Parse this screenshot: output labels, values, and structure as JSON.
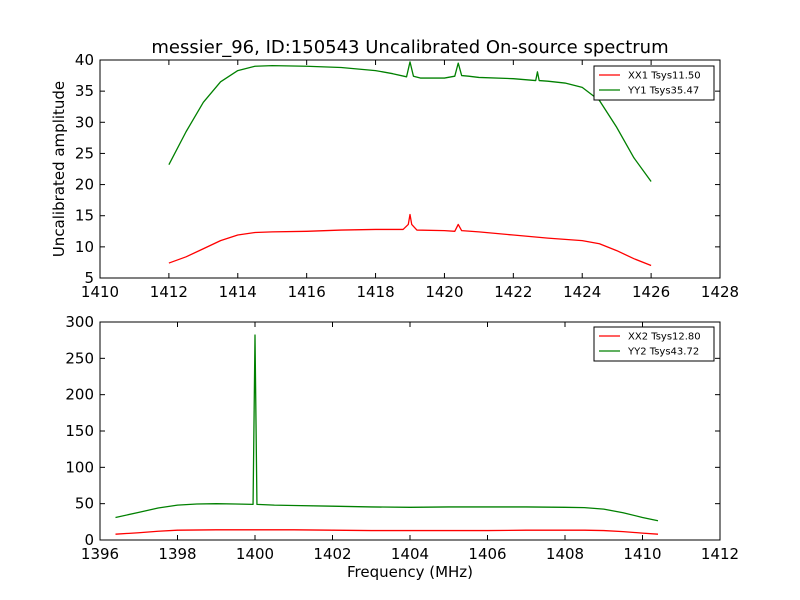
{
  "figure": {
    "title": "messier_96, ID:150543 Uncalibrated On-source spectrum"
  },
  "colors": {
    "xx": "#ff0000",
    "yy": "#008000",
    "frame": "#000000",
    "background": "#ffffff"
  },
  "chart_data": [
    {
      "type": "line",
      "title": "messier_96, ID:150543 Uncalibrated On-source spectrum",
      "xlabel": "",
      "ylabel": "Uncalibrated amplitude",
      "xlim": [
        1410,
        1428
      ],
      "ylim": [
        5,
        40
      ],
      "xticks": [
        1410,
        1412,
        1414,
        1416,
        1418,
        1420,
        1422,
        1424,
        1426,
        1428
      ],
      "yticks": [
        5,
        10,
        15,
        20,
        25,
        30,
        35,
        40
      ],
      "grid": false,
      "legend": "top-right",
      "series": [
        {
          "name": "XX1 Tsys11.50",
          "color": "#ff0000",
          "x": [
            1412.0,
            1412.5,
            1413.0,
            1413.5,
            1414.0,
            1414.5,
            1415.0,
            1416.0,
            1417.0,
            1418.0,
            1418.8,
            1418.95,
            1419.0,
            1419.05,
            1419.2,
            1420.0,
            1420.3,
            1420.4,
            1420.5,
            1421.0,
            1422.0,
            1423.0,
            1424.0,
            1424.5,
            1425.0,
            1425.5,
            1426.0
          ],
          "y": [
            7.4,
            8.4,
            9.7,
            11.0,
            11.9,
            12.3,
            12.4,
            12.5,
            12.7,
            12.8,
            12.8,
            13.6,
            15.2,
            13.6,
            12.7,
            12.6,
            12.5,
            13.6,
            12.6,
            12.4,
            11.9,
            11.4,
            11.0,
            10.5,
            9.4,
            8.1,
            7.0
          ]
        },
        {
          "name": "YY1 Tsys35.47",
          "color": "#008000",
          "x": [
            1412.0,
            1412.5,
            1413.0,
            1413.5,
            1414.0,
            1414.5,
            1415.0,
            1416.0,
            1417.0,
            1418.0,
            1418.5,
            1418.9,
            1419.0,
            1419.1,
            1419.3,
            1420.0,
            1420.3,
            1420.4,
            1420.5,
            1420.7,
            1421.0,
            1422.0,
            1422.65,
            1422.7,
            1422.75,
            1423.0,
            1423.5,
            1424.0,
            1424.5,
            1425.0,
            1425.5,
            1426.0
          ],
          "y": [
            23.2,
            28.5,
            33.2,
            36.5,
            38.3,
            39.0,
            39.1,
            39.0,
            38.8,
            38.3,
            37.8,
            37.3,
            39.7,
            37.4,
            37.1,
            37.1,
            37.4,
            39.5,
            37.5,
            37.4,
            37.2,
            37.0,
            36.7,
            38.1,
            36.7,
            36.6,
            36.3,
            35.6,
            33.5,
            29.2,
            24.3,
            20.5
          ]
        }
      ]
    },
    {
      "type": "line",
      "title": "",
      "xlabel": "Frequency (MHz)",
      "ylabel": "",
      "xlim": [
        1396,
        1412
      ],
      "ylim": [
        0,
        300
      ],
      "xticks": [
        1396,
        1398,
        1400,
        1402,
        1404,
        1406,
        1408,
        1410,
        1412
      ],
      "yticks": [
        0,
        50,
        100,
        150,
        200,
        250,
        300
      ],
      "grid": false,
      "legend": "top-right",
      "series": [
        {
          "name": "XX2 Tsys12.80",
          "color": "#ff0000",
          "x": [
            1396.4,
            1397.0,
            1397.5,
            1398.0,
            1399.0,
            1400.0,
            1401.0,
            1402.0,
            1403.0,
            1404.0,
            1405.0,
            1406.0,
            1407.0,
            1408.0,
            1408.5,
            1409.0,
            1409.5,
            1410.0,
            1410.4
          ],
          "y": [
            8,
            10,
            12,
            13.5,
            14,
            14,
            14,
            13.5,
            13,
            13,
            13,
            13,
            13.5,
            13.5,
            13.5,
            13,
            11.5,
            9.5,
            8
          ]
        },
        {
          "name": "YY2 Tsys43.72",
          "color": "#008000",
          "x": [
            1396.4,
            1397.0,
            1397.5,
            1398.0,
            1398.5,
            1399.0,
            1399.5,
            1399.95,
            1400.0,
            1400.05,
            1400.5,
            1401.0,
            1402.0,
            1403.0,
            1404.0,
            1405.0,
            1406.0,
            1407.0,
            1408.0,
            1408.5,
            1409.0,
            1409.5,
            1410.0,
            1410.4
          ],
          "y": [
            31,
            38,
            44,
            48,
            49.5,
            50,
            49.5,
            49,
            282,
            49,
            48,
            47.5,
            46.5,
            45.5,
            45,
            45.5,
            45.5,
            45.5,
            45,
            44.5,
            42.5,
            37.5,
            31,
            26.5
          ]
        }
      ]
    }
  ]
}
